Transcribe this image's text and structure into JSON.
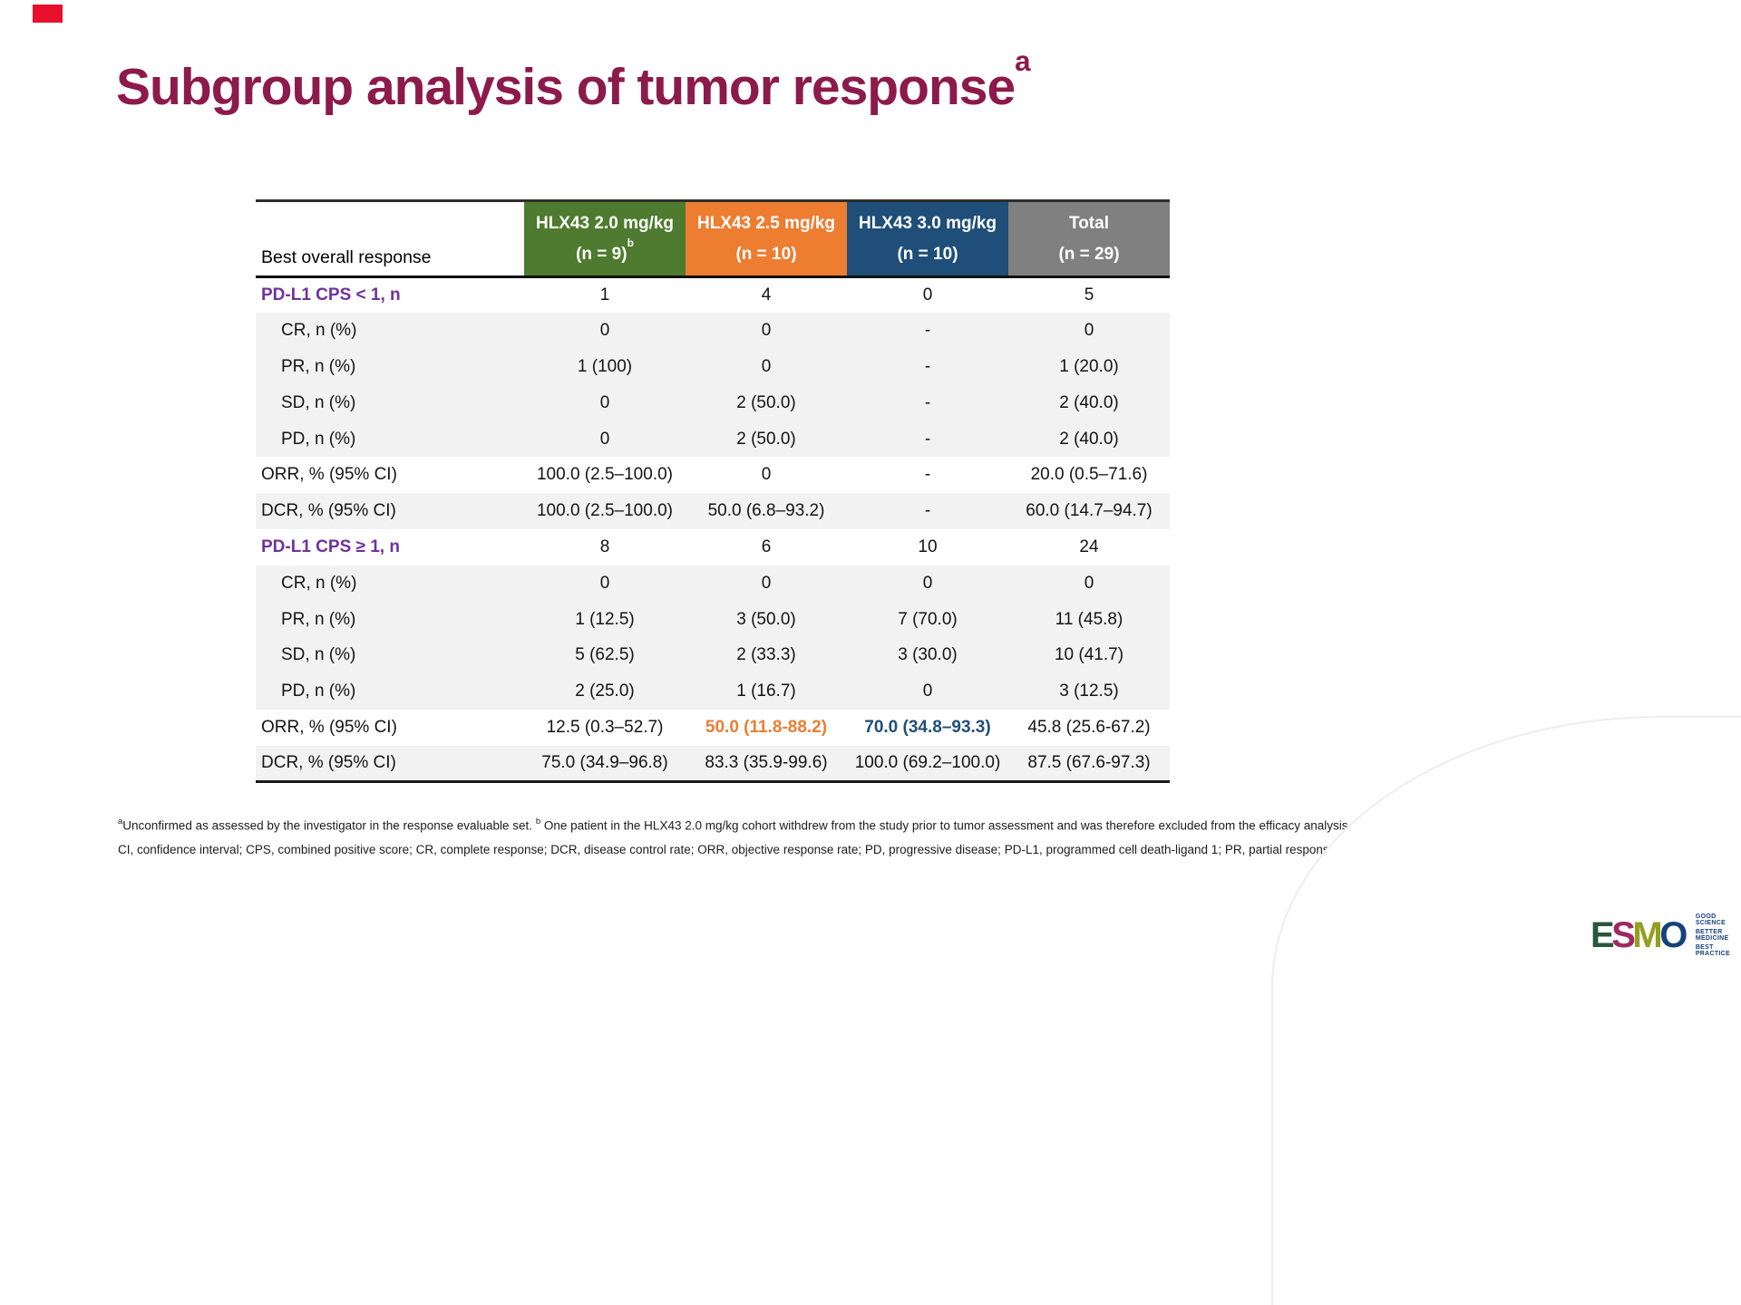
{
  "slide": {
    "title": "Subgroup analysis of tumor response",
    "title_sup": "a",
    "title_color": "#8c1a4b",
    "flag_color": "#e8112d"
  },
  "table": {
    "row_header_label": "Best overall response",
    "stripe_color": "#f2f2f2",
    "section_color": "#7030a0",
    "columns": [
      {
        "line1": "HLX43 2.0 mg/kg",
        "line2": "(n = 9)",
        "sup": "b",
        "color": "#4e7b2f"
      },
      {
        "line1": "HLX43 2.5 mg/kg",
        "line2": "(n = 10)",
        "sup": "",
        "color": "#ed7d31"
      },
      {
        "line1": "HLX43 3.0 mg/kg",
        "line2": "(n = 10)",
        "sup": "",
        "color": "#1f4e79"
      },
      {
        "line1": "Total",
        "line2": "(n = 29)",
        "sup": "",
        "color": "#808080"
      }
    ],
    "rows": [
      {
        "label": "PD-L1 CPS < 1, n",
        "style": "section",
        "bg": "white",
        "values": [
          "1",
          "4",
          "0",
          "5"
        ]
      },
      {
        "label": "CR, n (%)",
        "style": "sub",
        "bg": "gray",
        "values": [
          "0",
          "0",
          "-",
          "0"
        ]
      },
      {
        "label": "PR, n (%)",
        "style": "sub",
        "bg": "gray",
        "values": [
          "1 (100)",
          "0",
          "-",
          "1 (20.0)"
        ]
      },
      {
        "label": "SD, n (%)",
        "style": "sub",
        "bg": "gray",
        "values": [
          "0",
          "2 (50.0)",
          "-",
          "2 (40.0)"
        ]
      },
      {
        "label": "PD, n (%)",
        "style": "sub",
        "bg": "gray",
        "values": [
          "0",
          "2 (50.0)",
          "-",
          "2 (40.0)"
        ]
      },
      {
        "label": "ORR, % (95% CI)",
        "style": "stat",
        "bg": "white",
        "values": [
          "100.0 (2.5–100.0)",
          "0",
          "-",
          "20.0 (0.5–71.6)"
        ]
      },
      {
        "label": "DCR, % (95% CI)",
        "style": "stat",
        "bg": "gray",
        "values": [
          "100.0 (2.5–100.0)",
          "50.0 (6.8–93.2)",
          "-",
          "60.0 (14.7–94.7)"
        ]
      },
      {
        "label": "PD-L1 CPS ≥ 1, n",
        "style": "section",
        "bg": "white",
        "values": [
          "8",
          "6",
          "10",
          "24"
        ]
      },
      {
        "label": "CR, n (%)",
        "style": "sub",
        "bg": "gray",
        "values": [
          "0",
          "0",
          "0",
          "0"
        ]
      },
      {
        "label": "PR, n (%)",
        "style": "sub",
        "bg": "gray",
        "values": [
          "1 (12.5)",
          "3 (50.0)",
          "7 (70.0)",
          "11 (45.8)"
        ]
      },
      {
        "label": "SD, n (%)",
        "style": "sub",
        "bg": "gray",
        "values": [
          "5 (62.5)",
          "2 (33.3)",
          "3 (30.0)",
          "10 (41.7)"
        ]
      },
      {
        "label": "PD, n (%)",
        "style": "sub",
        "bg": "gray",
        "values": [
          "2 (25.0)",
          "1 (16.7)",
          "0",
          "3 (12.5)"
        ]
      },
      {
        "label": "ORR, % (95% CI)",
        "style": "stat",
        "bg": "white",
        "values": [
          "12.5 (0.3–52.7)",
          "50.0 (11.8-88.2)",
          "70.0 (34.8–93.3)",
          "45.8 (25.6-67.2)"
        ],
        "highlights": {
          "1": "#ed7d31",
          "2": "#1f4e79"
        }
      },
      {
        "label": "DCR, % (95% CI)",
        "style": "stat",
        "bg": "gray",
        "values": [
          "75.0 (34.9–96.8)",
          "83.3 (35.9-99.6)",
          "100.0 (69.2–100.0)",
          "87.5 (67.6-97.3)"
        ]
      }
    ]
  },
  "footnotes": {
    "sup_a": "a",
    "text_a": "Unconfirmed as assessed by the investigator in the response evaluable set. ",
    "sup_b": "b",
    "text_b": " One patient in the HLX43 2.0 mg/kg cohort withdrew from the study prior to tumor assessment and was therefore excluded from the efficacy analysis.",
    "abbreviations": "CI, confidence interval; CPS, combined positive score; CR, complete response; DCR, disease control rate; ORR, objective response rate; PD, progressive disease; PD-L1, programmed cell death-ligand 1; PR, partial response; SD, stable disease."
  },
  "logo": {
    "letters": [
      {
        "ch": "E",
        "color": "#28573b"
      },
      {
        "ch": "S",
        "color": "#9d2963"
      },
      {
        "ch": "M",
        "color": "#93a01f"
      },
      {
        "ch": "O",
        "color": "#16427c"
      }
    ],
    "tagline": [
      "GOOD SCIENCE",
      "BETTER MEDICINE",
      "BEST PRACTICE"
    ],
    "tagline_color": "#16427c"
  }
}
